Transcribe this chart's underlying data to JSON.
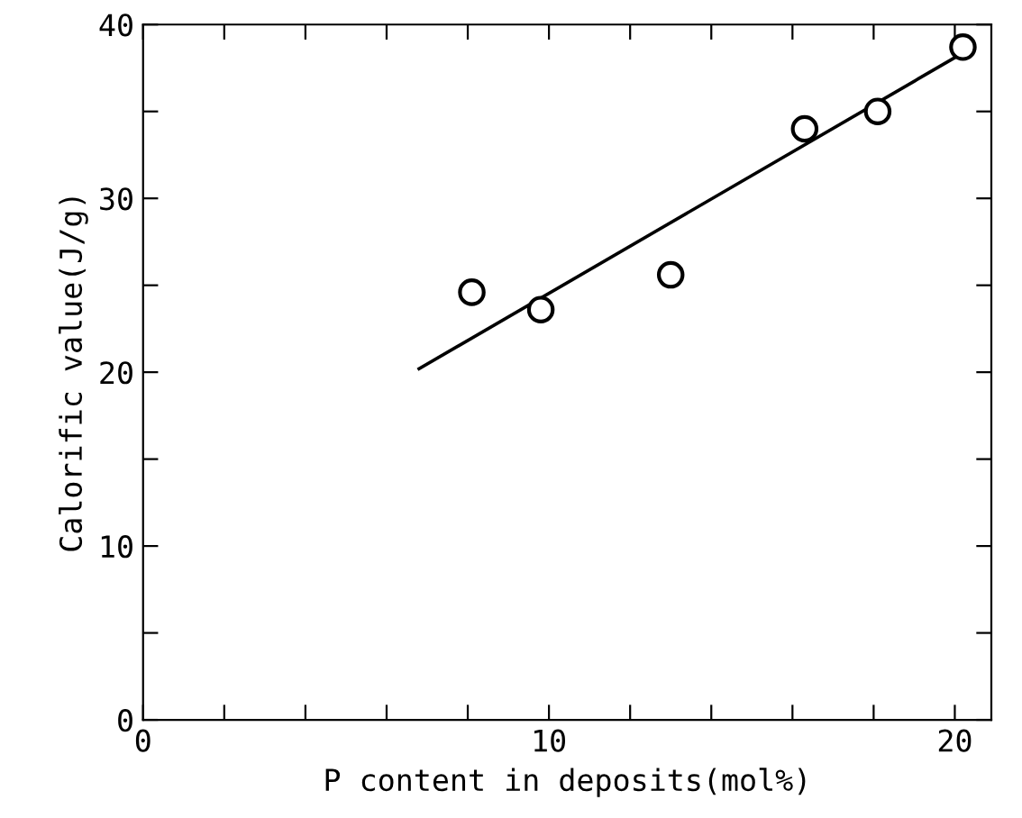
{
  "chart_data": {
    "type": "scatter",
    "xlabel": "P content in deposits(mol%)",
    "ylabel": "Calorific value(J/g)",
    "xlim": [
      0,
      20.9
    ],
    "ylim": [
      0,
      40
    ],
    "xticks": [
      0,
      {
        "value": 2,
        "label": null
      },
      {
        "value": 4,
        "label": null
      },
      {
        "value": 6,
        "label": null
      },
      {
        "value": 8,
        "label": null
      },
      10,
      {
        "value": 12,
        "label": null
      },
      {
        "value": 14,
        "label": null
      },
      {
        "value": 16,
        "label": null
      },
      {
        "value": 18,
        "label": null
      },
      20
    ],
    "yticks": [
      0,
      {
        "value": 5,
        "label": null
      },
      10,
      {
        "value": 15,
        "label": null
      },
      20,
      {
        "value": 25,
        "label": null
      },
      30,
      {
        "value": 35,
        "label": null
      },
      40
    ],
    "grid": false,
    "legend": false,
    "series": [
      {
        "type": "line",
        "x": [
          6.8,
          20.15
        ],
        "values": [
          20.2,
          38.3
        ],
        "color": "#000000",
        "marker": "none",
        "line_style": "solid"
      },
      {
        "x": [
          8.1,
          9.8,
          13.0,
          16.3,
          18.1,
          20.2
        ],
        "values": [
          24.6,
          23.6,
          25.6,
          34.0,
          35.0,
          38.7
        ],
        "color": "#000000",
        "marker": "circle"
      }
    ]
  }
}
